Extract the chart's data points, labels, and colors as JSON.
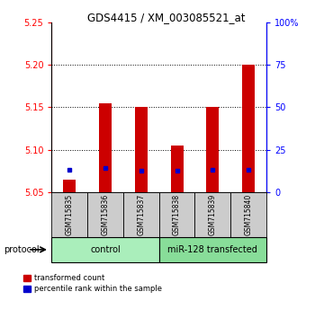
{
  "title": "GDS4415 / XM_003085521_at",
  "samples": [
    "GSM715835",
    "GSM715836",
    "GSM715837",
    "GSM715838",
    "GSM715839",
    "GSM715840"
  ],
  "red_values": [
    5.065,
    5.155,
    5.15,
    5.105,
    5.15,
    5.2
  ],
  "blue_values": [
    5.077,
    5.079,
    5.075,
    5.076,
    5.077,
    5.077
  ],
  "y_min": 5.05,
  "y_max": 5.25,
  "y_ticks_left": [
    5.05,
    5.1,
    5.15,
    5.2,
    5.25
  ],
  "y_ticks_right": [
    0,
    25,
    50,
    75,
    100
  ],
  "y_ticks_right_labels": [
    "0",
    "25",
    "50",
    "75",
    "100%"
  ],
  "bar_width": 0.35,
  "bar_color": "#cc0000",
  "blue_color": "#0000cc",
  "control_label": "control",
  "transfected_label": "miR-128 transfected",
  "group_bg_control": "#aaeebb",
  "group_bg_transfected": "#88dd99",
  "sample_bg": "#cccccc",
  "legend_red_label": "transformed count",
  "legend_blue_label": "percentile rank within the sample",
  "protocol_label": "protocol",
  "grid_lines": [
    5.1,
    5.15,
    5.2
  ]
}
